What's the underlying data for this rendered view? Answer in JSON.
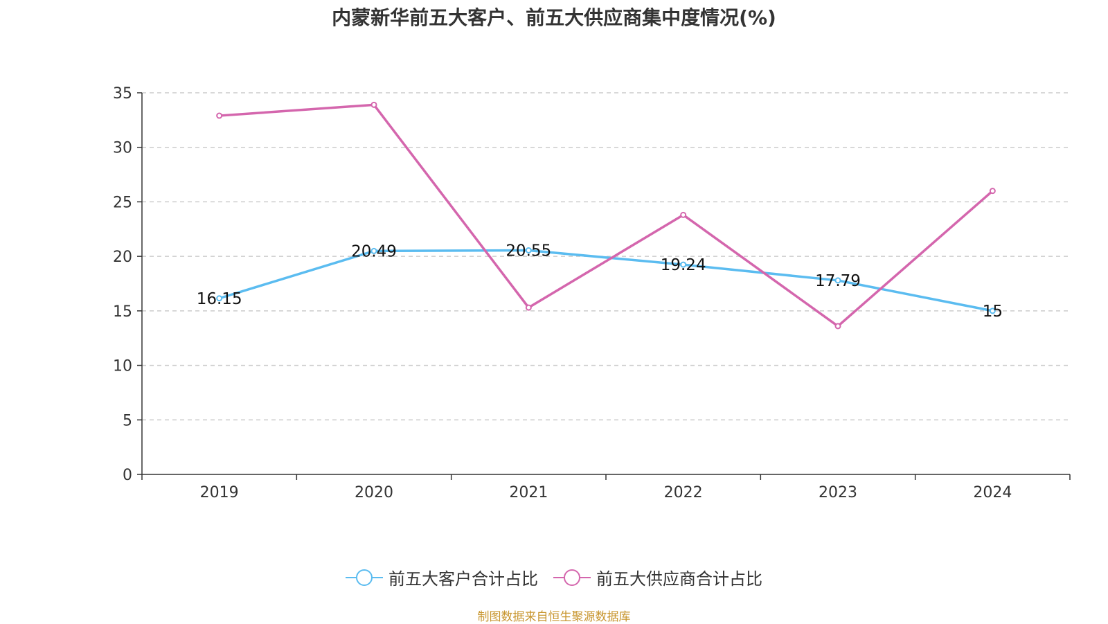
{
  "colors": {
    "customer": "#5bbcf0",
    "supplier": "#d466ad",
    "source": "#c8962f",
    "grid": "#cccccc",
    "axis": "#333333"
  },
  "chart_data": {
    "type": "line",
    "title": "内蒙新华前五大客户、前五大供应商集中度情况(%)",
    "xlabel": "",
    "ylabel": "",
    "categories": [
      "2019",
      "2020",
      "2021",
      "2022",
      "2023",
      "2024"
    ],
    "ylim": [
      0,
      35
    ],
    "yticks": [
      0,
      5,
      10,
      15,
      20,
      25,
      30,
      35
    ],
    "grid": true,
    "legend_position": "bottom",
    "series": [
      {
        "name": "前五大客户合计占比",
        "values": [
          16.15,
          20.49,
          20.55,
          19.24,
          17.79,
          15
        ],
        "labels": [
          "16.15",
          "20.49",
          "20.55",
          "19.24",
          "17.79",
          "15"
        ]
      },
      {
        "name": "前五大供应商合计占比",
        "values": [
          32.9,
          33.9,
          15.3,
          23.8,
          13.6,
          26.0
        ]
      }
    ]
  },
  "source_note": "制图数据来自恒生聚源数据库"
}
